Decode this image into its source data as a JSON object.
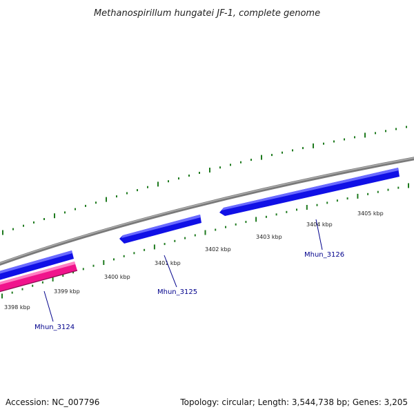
{
  "title": "Methanospirillum hungatei JF-1, complete genome",
  "footer": {
    "accession": "Accession: NC_007796",
    "summary": "Topology: circular; Length: 3,544,738 bp; Genes: 3,205"
  },
  "colors": {
    "backbone": "#808080",
    "tick": "#1e7a1e",
    "gene_forward": "#1010e6",
    "gene_reverse": "#f0148c",
    "gene_label": "#00008b"
  },
  "ticks": {
    "labels": [
      "3398 kbp",
      "3399 kbp",
      "3400 kbp",
      "3401 kbp",
      "3402 kbp",
      "3403 kbp",
      "3404 kbp",
      "3405 kbp"
    ]
  },
  "genes": [
    {
      "name": "Mhun_3124",
      "strand": "reverse"
    },
    {
      "name": "Mhun_3125",
      "strand": "forward"
    },
    {
      "name": "Mhun_3126",
      "strand": "forward"
    }
  ]
}
